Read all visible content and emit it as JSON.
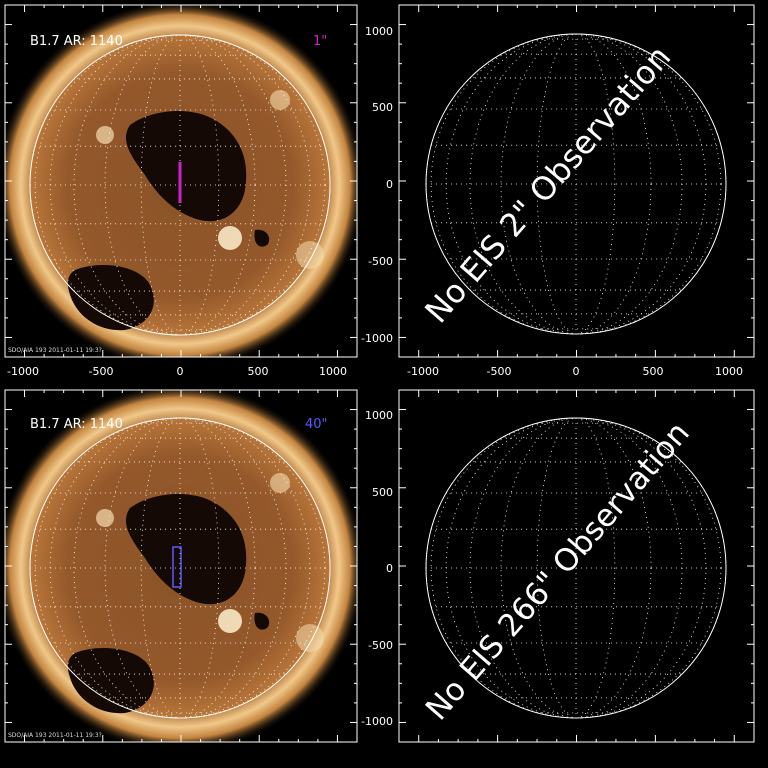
{
  "panels": [
    {
      "id": "top-left",
      "kind": "sun",
      "label_left": "B1.7 AR: 1140",
      "label_right": "1\"",
      "label_right_color": "#cc22cc",
      "slit_style": "line",
      "footer": "SDO/AIA 193 2011-01-11 19:3?",
      "x_ticks": [
        "-1000",
        "-500",
        "0",
        "500",
        "1000"
      ],
      "show_x_ticks": true
    },
    {
      "id": "top-right",
      "kind": "grid",
      "message": "No EIS 2\" Observation",
      "y_ticks": [
        "1000",
        "500",
        "0",
        "-500",
        "-1000"
      ],
      "x_ticks": [
        "-1000",
        "-500",
        "0",
        "500",
        "1000"
      ],
      "show_x_ticks": true
    },
    {
      "id": "bottom-left",
      "kind": "sun",
      "label_left": "B1.7 AR: 1140",
      "label_right": "40\"",
      "label_right_color": "#5b5bff",
      "slit_style": "box",
      "footer": "SDO/AIA 193 2011-01-11 19:3?",
      "show_x_ticks": false
    },
    {
      "id": "bottom-right",
      "kind": "grid",
      "message": "No EIS 266\" Observation",
      "y_ticks": [
        "1000",
        "500",
        "0",
        "-500",
        "-1000"
      ],
      "show_x_ticks": false
    }
  ],
  "colors": {
    "background": "#000000",
    "axis": "#ffffff",
    "sun_core": "#7a4a22",
    "sun_mid": "#a8682e",
    "corona": "#f4c98a",
    "coronal_hole": "#120804",
    "bright_region": "#fff0d0"
  }
}
